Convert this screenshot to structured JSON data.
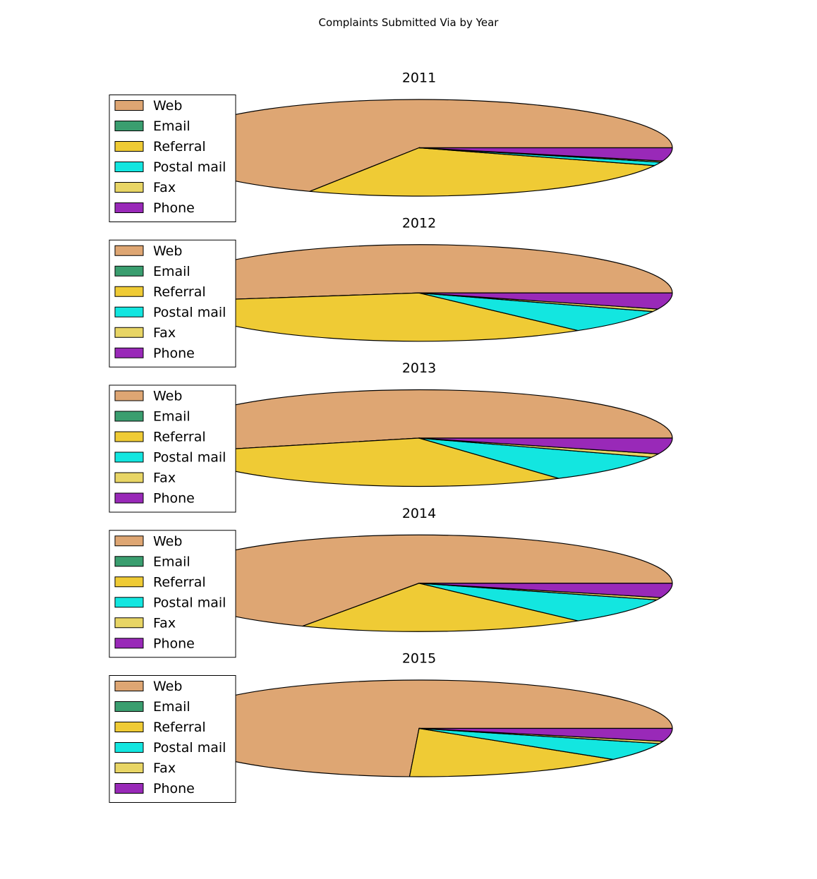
{
  "figure_title": "Complaints Submitted Via by Year",
  "colors": {
    "Web": "#DEA673",
    "Email": "#3A9E6F",
    "Referral": "#EFCB35",
    "Postal mail": "#13E6E0",
    "Fax": "#E8D565",
    "Phone": "#9929B8"
  },
  "chart_data": [
    {
      "type": "pie",
      "title": "2011",
      "categories": [
        "Web",
        "Email",
        "Referral",
        "Postal mail",
        "Fax",
        "Phone"
      ],
      "values": [
        67.9,
        0.0,
        26.1,
        1.2,
        0.4,
        4.4
      ],
      "legend_position": "upper-left",
      "start_angle_deg": 0,
      "direction": "counterclockwise"
    },
    {
      "type": "pie",
      "title": "2012",
      "categories": [
        "Web",
        "Email",
        "Referral",
        "Postal mail",
        "Fax",
        "Phone"
      ],
      "values": [
        52.8,
        0.0,
        33.0,
        7.9,
        0.9,
        5.4
      ],
      "legend_position": "upper-left",
      "start_angle_deg": 0,
      "direction": "counterclockwise"
    },
    {
      "type": "pie",
      "title": "2013",
      "categories": [
        "Web",
        "Email",
        "Referral",
        "Postal mail",
        "Fax",
        "Phone"
      ],
      "values": [
        54.7,
        0.0,
        29.6,
        9.2,
        1.2,
        5.3
      ],
      "legend_position": "upper-left",
      "start_angle_deg": 0,
      "direction": "counterclockwise"
    },
    {
      "type": "pie",
      "title": "2014",
      "categories": [
        "Web",
        "Email",
        "Referral",
        "Postal mail",
        "Fax",
        "Phone"
      ],
      "values": [
        67.4,
        0.0,
        18.4,
        8.6,
        0.8,
        4.8
      ],
      "legend_position": "upper-left",
      "start_angle_deg": 0,
      "direction": "counterclockwise"
    },
    {
      "type": "pie",
      "title": "2015",
      "categories": [
        "Web",
        "Email",
        "Referral",
        "Postal mail",
        "Fax",
        "Phone"
      ],
      "values": [
        74.4,
        0.0,
        14.5,
        6.0,
        0.8,
        4.3
      ],
      "legend_position": "upper-left",
      "start_angle_deg": 0,
      "direction": "counterclockwise"
    }
  ]
}
